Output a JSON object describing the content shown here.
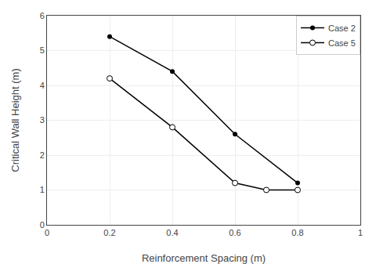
{
  "chart_data": {
    "type": "line",
    "xlabel": "Reinforcement Spacing (m)",
    "ylabel": "Critical Wall Height (m)",
    "series": [
      {
        "name": "Case 2",
        "color": "#000000",
        "marker": "dot",
        "x": [
          0.2,
          0.4,
          0.6,
          0.8
        ],
        "values": [
          5.4,
          4.4,
          2.6,
          1.2
        ]
      },
      {
        "name": "Case 5",
        "color": "#000000",
        "marker": "open-circle",
        "x": [
          0.2,
          0.4,
          0.6,
          0.7,
          0.8
        ],
        "values": [
          4.2,
          2.8,
          1.2,
          1.0,
          1.0
        ]
      }
    ],
    "xlim": [
      0,
      1
    ],
    "ylim": [
      0,
      6
    ],
    "xticks": [
      0,
      0.2,
      0.4,
      0.6,
      0.8,
      1
    ],
    "yticks": [
      0,
      1,
      2,
      3,
      4,
      5,
      6
    ],
    "grid": true,
    "legend": "upper right"
  }
}
